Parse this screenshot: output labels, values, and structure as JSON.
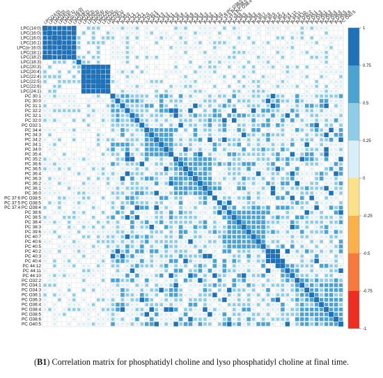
{
  "chart_data": {
    "type": "heatmap",
    "row_labels": [
      "LPC(14:0)",
      "LPC(16:0)",
      "LPC(16:0)",
      "LPC(16:1)",
      "LPC(o-16:0)",
      "LPC(18:1)",
      "LPC(18:2)",
      "LPC(18:3)",
      "LPC(20:3)",
      "LPC(20:4)",
      "LPC(22:4)",
      "LPC(22:5)",
      "LPC(22:6)",
      "LPC(24:1)",
      "PC 30:1",
      "PC 30:0",
      "PC 31:1",
      "PC 32:2",
      "PC 32:1",
      "PC 32:0",
      "PC O32:1",
      "PC 34:4",
      "PC 34:3",
      "PC 34:2",
      "PC 34:1",
      "PC 34:0",
      "PC 35:4",
      "PC 35:2",
      "PC 36:6",
      "PC 36:5",
      "PC 36:4",
      "PC 36:3",
      "PC 36:2",
      "PC 36:1",
      "PC 36:0",
      "PC 37:6 PC O38:5",
      "PC 37:5 PC O38:5",
      "PC 37:4 PC O38:4",
      "PC 38:6",
      "PC 38:5",
      "PC 38:4",
      "PC 38:3",
      "PC 39:6",
      "PC 40:7",
      "PC 40:6",
      "PC 40:5",
      "PC 40:2",
      "PC 40:3",
      "PC 40:4",
      "PC 44:12",
      "PC 44:11",
      "PC 44:10",
      "PC O32:2",
      "PC O34:1",
      "PC O34:3",
      "PC O36:1",
      "PC O36:3",
      "PC O36:4",
      "PC O38:4",
      "PC O38:5",
      "PC O38:6",
      "PC O40:5"
    ],
    "column_labels_source": "same as row_labels",
    "value_range": [
      -1,
      1
    ],
    "color_scale": {
      "ticks": [
        "1",
        "0.75",
        "0.5",
        "0.25",
        "0",
        "-0.25",
        "-0.5",
        "-0.75",
        "-1"
      ],
      "bands": [
        {
          "from": 0.75,
          "to": 1,
          "color": "#1f72b8"
        },
        {
          "from": 0.5,
          "to": 0.75,
          "color": "#4aa3d0"
        },
        {
          "from": 0.25,
          "to": 0.5,
          "color": "#8dcde6"
        },
        {
          "from": 0,
          "to": 0.25,
          "color": "#d8eff7"
        },
        {
          "from": -0.25,
          "to": 0,
          "color": "#fde08a"
        },
        {
          "from": -0.5,
          "to": -0.25,
          "color": "#fbb04a"
        },
        {
          "from": -0.75,
          "to": -0.5,
          "color": "#f57a3c"
        },
        {
          "from": -1,
          "to": -0.75,
          "color": "#ee2e22"
        }
      ]
    },
    "blocks": [
      {
        "from": 0,
        "to": 6,
        "value": 0.85
      },
      {
        "from": 8,
        "to": 13,
        "value": 0.92
      },
      {
        "from": 14,
        "to": 20,
        "value": 0.45
      },
      {
        "from": 21,
        "to": 26,
        "value": 0.62
      },
      {
        "from": 27,
        "to": 34,
        "value": 0.58
      },
      {
        "from": 38,
        "to": 45,
        "value": 0.6
      },
      {
        "from": 46,
        "to": 48,
        "value": 0.82
      },
      {
        "from": 49,
        "to": 51,
        "value": 0.55
      },
      {
        "from": 52,
        "to": 61,
        "value": 0.55
      }
    ]
  },
  "caption": {
    "label": "B1",
    "text": "Correlation matrix for phosphatidyl choline and lyso phosphatidyl choline at final time."
  }
}
